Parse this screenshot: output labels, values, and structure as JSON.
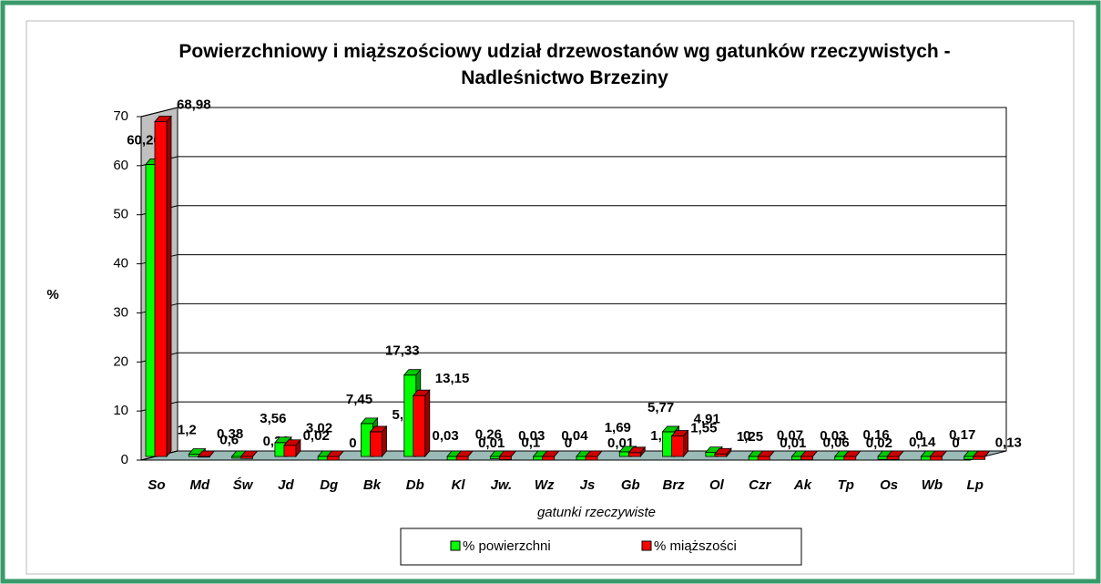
{
  "chart_data": {
    "type": "bar3d",
    "title": "Powierzchniowy i miąższościowy udział drzewostanów wg gatunków rzeczywistych - Nadleśnictwo Brzeziny",
    "x_label": "gatunki rzeczywiste",
    "y_label": "%",
    "categories": [
      "So",
      "Md",
      "Św",
      "Jd",
      "Dg",
      "Bk",
      "Db",
      "Kl",
      "Jw.",
      "Wz",
      "Js",
      "Gb",
      "Brz",
      "Ol",
      "Czr",
      "Ak",
      "Tp",
      "Os",
      "Wb",
      "Lp"
    ],
    "series": [
      {
        "name": "% powierzchni",
        "color": "#00ff00",
        "values": [
          60.26,
          1.2,
          0.38,
          3.56,
          0.02,
          7.45,
          17.33,
          0.03,
          0.26,
          0.03,
          0.04,
          1.69,
          5.77,
          1.55,
          0,
          0.07,
          0.03,
          0.16,
          0,
          0.17
        ],
        "value_labels": [
          "60,26",
          "1,2",
          "0,38",
          "3,56",
          "0,02",
          "7,45",
          "17,33",
          "0,03",
          "0,26",
          "0,03",
          "0,04",
          "1,69",
          "5,77",
          "1,55",
          "0",
          "0,07",
          "0,03",
          "0,16",
          "0",
          "0,17"
        ]
      },
      {
        "name": "% miąższości",
        "color": "#ff0000",
        "values": [
          68.98,
          0.6,
          0.32,
          3.02,
          0,
          5.77,
          13.15,
          0.01,
          0.1,
          0,
          0.01,
          1.52,
          4.91,
          1.25,
          0.01,
          0.06,
          0.02,
          0.14,
          0,
          0.13
        ],
        "value_labels": [
          "68,98",
          "0,6",
          "0,32",
          "3,02",
          "0",
          "5,77",
          "13,15",
          "0,01",
          "0,1",
          "0",
          "0,01",
          "1,52",
          "4,91",
          "1,25",
          "0,01",
          "0,06",
          "0,02",
          "0,14",
          "0",
          "0,13"
        ]
      }
    ],
    "ylim": [
      0,
      70
    ],
    "yticks": [
      0,
      10,
      20,
      30,
      40,
      50,
      60,
      70
    ],
    "grid": true,
    "legend": "bottom"
  }
}
